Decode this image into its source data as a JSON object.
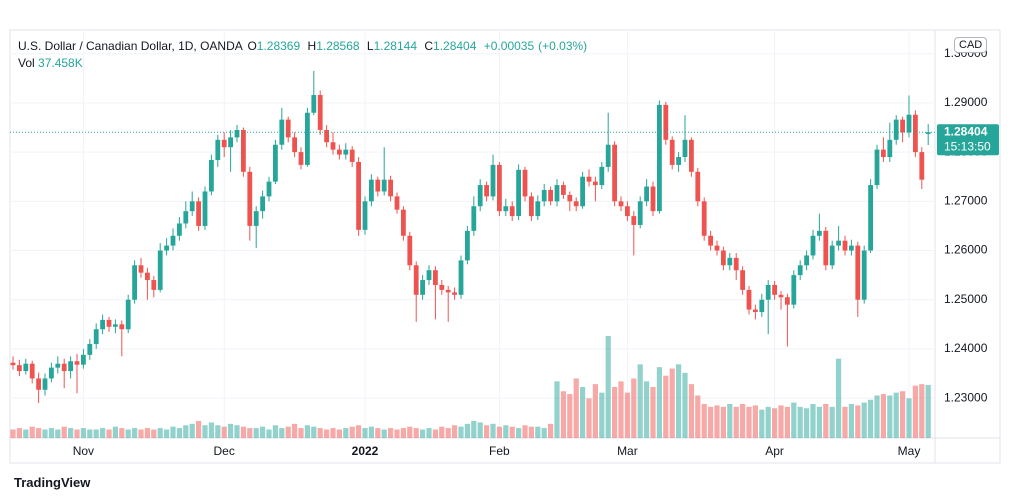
{
  "chart_data": {
    "type": "candlestick",
    "title": "U.S. Dollar / Canadian Dollar, 1D, OANDA",
    "ohlc_labels": [
      "O",
      "H",
      "L",
      "C"
    ],
    "change": "+0.00035",
    "change_pct": "(+0.03%)",
    "volume_name": "Vol",
    "volume_label": "37.458K",
    "currency": "CAD",
    "countdown": "15:13:50",
    "brand": "TradingView",
    "up_color": "#26a69a",
    "down_color": "#ef5350",
    "grid": true,
    "ylim": [
      1.2219,
      1.3038
    ],
    "yticks": [
      {
        "value": 1.23,
        "label": "1.23000"
      },
      {
        "value": 1.24,
        "label": "1.24000"
      },
      {
        "value": 1.25,
        "label": "1.25000"
      },
      {
        "value": 1.26,
        "label": "1.26000"
      },
      {
        "value": 1.27,
        "label": "1.27000"
      },
      {
        "value": 1.28,
        "label": "1.28000"
      },
      {
        "value": 1.29,
        "label": "1.29000"
      },
      {
        "value": 1.3,
        "label": "1.30000"
      }
    ],
    "categories": [
      null,
      null,
      null,
      null,
      null,
      null,
      null,
      null,
      null,
      null,
      null,
      "Nov",
      null,
      null,
      null,
      null,
      null,
      null,
      null,
      null,
      null,
      null,
      null,
      null,
      null,
      null,
      null,
      null,
      null,
      null,
      null,
      null,
      null,
      "Dec",
      null,
      null,
      null,
      null,
      null,
      null,
      null,
      null,
      null,
      null,
      null,
      null,
      null,
      null,
      null,
      null,
      null,
      null,
      null,
      null,
      null,
      "2022",
      null,
      null,
      null,
      null,
      null,
      null,
      null,
      null,
      null,
      null,
      null,
      null,
      null,
      null,
      null,
      null,
      null,
      null,
      null,
      null,
      "Feb",
      null,
      null,
      null,
      null,
      null,
      null,
      null,
      null,
      null,
      null,
      null,
      null,
      null,
      null,
      null,
      null,
      null,
      null,
      null,
      "Mar",
      null,
      null,
      null,
      null,
      null,
      null,
      null,
      null,
      null,
      null,
      null,
      null,
      null,
      null,
      null,
      null,
      null,
      null,
      null,
      null,
      null,
      null,
      "Apr",
      null,
      null,
      null,
      null,
      null,
      null,
      null,
      null,
      null,
      null,
      null,
      null,
      null,
      null,
      null,
      null,
      null,
      null,
      null,
      null,
      "May",
      null,
      null,
      null
    ],
    "ohlc": [
      [
        1.2372,
        1.2385,
        1.2358,
        1.2367
      ],
      [
        1.2367,
        1.2378,
        1.2345,
        1.2355
      ],
      [
        1.2355,
        1.238,
        1.2348,
        1.237
      ],
      [
        1.237,
        1.2376,
        1.233,
        1.234
      ],
      [
        1.234,
        1.2352,
        1.229,
        1.2317
      ],
      [
        1.2317,
        1.235,
        1.2305,
        1.234
      ],
      [
        1.234,
        1.2372,
        1.2332,
        1.2362
      ],
      [
        1.2362,
        1.2385,
        1.235,
        1.237
      ],
      [
        1.237,
        1.238,
        1.232,
        1.2355
      ],
      [
        1.2355,
        1.2385,
        1.234,
        1.2375
      ],
      [
        1.2375,
        1.239,
        1.231,
        1.2368
      ],
      [
        1.2368,
        1.24,
        1.236,
        1.2388
      ],
      [
        1.2388,
        1.242,
        1.2378,
        1.241
      ],
      [
        1.241,
        1.2452,
        1.24,
        1.244
      ],
      [
        1.244,
        1.247,
        1.243,
        1.2459
      ],
      [
        1.2459,
        1.2465,
        1.2435,
        1.2445
      ],
      [
        1.2445,
        1.246,
        1.2432,
        1.245
      ],
      [
        1.245,
        1.2458,
        1.2385,
        1.244
      ],
      [
        1.244,
        1.251,
        1.2432,
        1.25
      ],
      [
        1.25,
        1.258,
        1.2492,
        1.257
      ],
      [
        1.257,
        1.2585,
        1.2545,
        1.2555
      ],
      [
        1.2555,
        1.2565,
        1.25,
        1.254
      ],
      [
        1.254,
        1.2548,
        1.2505,
        1.252
      ],
      [
        1.252,
        1.2615,
        1.2515,
        1.26
      ],
      [
        1.26,
        1.2625,
        1.259,
        1.261
      ],
      [
        1.261,
        1.2645,
        1.26,
        1.263
      ],
      [
        1.263,
        1.2668,
        1.262,
        1.2655
      ],
      [
        1.2655,
        1.27,
        1.2645,
        1.268
      ],
      [
        1.268,
        1.272,
        1.267,
        1.27
      ],
      [
        1.27,
        1.2708,
        1.264,
        1.265
      ],
      [
        1.265,
        1.273,
        1.2642,
        1.272
      ],
      [
        1.272,
        1.2795,
        1.2712,
        1.2784
      ],
      [
        1.2784,
        1.2835,
        1.277,
        1.2825
      ],
      [
        1.2825,
        1.284,
        1.279,
        1.281
      ],
      [
        1.281,
        1.2845,
        1.276,
        1.283
      ],
      [
        1.283,
        1.2855,
        1.282,
        1.2845
      ],
      [
        1.2845,
        1.285,
        1.275,
        1.276
      ],
      [
        1.276,
        1.277,
        1.262,
        1.265
      ],
      [
        1.265,
        1.269,
        1.2605,
        1.268
      ],
      [
        1.268,
        1.2722,
        1.2665,
        1.271
      ],
      [
        1.271,
        1.275,
        1.27,
        1.274
      ],
      [
        1.274,
        1.2825,
        1.2735,
        1.2815
      ],
      [
        1.2815,
        1.289,
        1.2805,
        1.2866
      ],
      [
        1.2866,
        1.2872,
        1.282,
        1.283
      ],
      [
        1.283,
        1.284,
        1.279,
        1.28
      ],
      [
        1.28,
        1.281,
        1.2765,
        1.2774
      ],
      [
        1.2774,
        1.289,
        1.277,
        1.288
      ],
      [
        1.288,
        1.2965,
        1.2875,
        1.2916
      ],
      [
        1.2916,
        1.2925,
        1.2835,
        1.2845
      ],
      [
        1.2845,
        1.2855,
        1.281,
        1.282
      ],
      [
        1.282,
        1.284,
        1.2795,
        1.2805
      ],
      [
        1.2805,
        1.2815,
        1.2785,
        1.2795
      ],
      [
        1.2795,
        1.2818,
        1.2785,
        1.2805
      ],
      [
        1.2805,
        1.2812,
        1.277,
        1.278
      ],
      [
        1.278,
        1.279,
        1.263,
        1.2642
      ],
      [
        1.2642,
        1.271,
        1.2632,
        1.27
      ],
      [
        1.27,
        1.2755,
        1.269,
        1.2744
      ],
      [
        1.2744,
        1.275,
        1.271,
        1.272
      ],
      [
        1.272,
        1.281,
        1.2712,
        1.2744
      ],
      [
        1.2744,
        1.2752,
        1.27,
        1.271
      ],
      [
        1.271,
        1.2718,
        1.2675,
        1.2683
      ],
      [
        1.2683,
        1.269,
        1.262,
        1.263
      ],
      [
        1.263,
        1.2638,
        1.256,
        1.257
      ],
      [
        1.257,
        1.2578,
        1.2455,
        1.251
      ],
      [
        1.251,
        1.255,
        1.25,
        1.254
      ],
      [
        1.254,
        1.257,
        1.253,
        1.256
      ],
      [
        1.256,
        1.2568,
        1.246,
        1.253
      ],
      [
        1.253,
        1.254,
        1.251,
        1.252
      ],
      [
        1.252,
        1.2528,
        1.2455,
        1.2515
      ],
      [
        1.2515,
        1.2525,
        1.25,
        1.251
      ],
      [
        1.251,
        1.259,
        1.2502,
        1.258
      ],
      [
        1.258,
        1.265,
        1.2572,
        1.264
      ],
      [
        1.264,
        1.271,
        1.263,
        1.269
      ],
      [
        1.269,
        1.2745,
        1.268,
        1.2733
      ],
      [
        1.2733,
        1.274,
        1.27,
        1.271
      ],
      [
        1.271,
        1.2795,
        1.2702,
        1.2774
      ],
      [
        1.2774,
        1.278,
        1.267,
        1.268
      ],
      [
        1.268,
        1.2705,
        1.267,
        1.269
      ],
      [
        1.269,
        1.27,
        1.266,
        1.267
      ],
      [
        1.267,
        1.2775,
        1.2662,
        1.2764
      ],
      [
        1.2764,
        1.277,
        1.27,
        1.271
      ],
      [
        1.271,
        1.2718,
        1.266,
        1.267
      ],
      [
        1.267,
        1.2712,
        1.2662,
        1.27
      ],
      [
        1.27,
        1.2735,
        1.269,
        1.2723
      ],
      [
        1.2723,
        1.273,
        1.2692,
        1.27
      ],
      [
        1.27,
        1.2745,
        1.269,
        1.2733
      ],
      [
        1.2733,
        1.274,
        1.2705,
        1.2713
      ],
      [
        1.2713,
        1.272,
        1.268,
        1.27
      ],
      [
        1.27,
        1.2708,
        1.268,
        1.269
      ],
      [
        1.269,
        1.276,
        1.2685,
        1.275
      ],
      [
        1.275,
        1.2765,
        1.273,
        1.274
      ],
      [
        1.274,
        1.275,
        1.27,
        1.2733
      ],
      [
        1.2733,
        1.278,
        1.2725,
        1.277
      ],
      [
        1.277,
        1.288,
        1.276,
        1.2815
      ],
      [
        1.2815,
        1.2822,
        1.269,
        1.27
      ],
      [
        1.27,
        1.271,
        1.268,
        1.269
      ],
      [
        1.269,
        1.27,
        1.266,
        1.267
      ],
      [
        1.267,
        1.268,
        1.259,
        1.2652
      ],
      [
        1.2652,
        1.271,
        1.2645,
        1.27
      ],
      [
        1.27,
        1.2745,
        1.269,
        1.273
      ],
      [
        1.273,
        1.274,
        1.267,
        1.268
      ],
      [
        1.268,
        1.2905,
        1.2675,
        1.2896
      ],
      [
        1.2896,
        1.2902,
        1.2815,
        1.2825
      ],
      [
        1.2825,
        1.2832,
        1.2765,
        1.2774
      ],
      [
        1.2774,
        1.28,
        1.276,
        1.279
      ],
      [
        1.279,
        1.2875,
        1.278,
        1.2825
      ],
      [
        1.2825,
        1.283,
        1.275,
        1.276
      ],
      [
        1.276,
        1.2768,
        1.269,
        1.27
      ],
      [
        1.27,
        1.2708,
        1.262,
        1.263
      ],
      [
        1.263,
        1.264,
        1.26,
        1.261
      ],
      [
        1.261,
        1.262,
        1.259,
        1.26
      ],
      [
        1.26,
        1.2608,
        1.256,
        1.257
      ],
      [
        1.257,
        1.2595,
        1.256,
        1.2585
      ],
      [
        1.2585,
        1.2595,
        1.254,
        1.256
      ],
      [
        1.256,
        1.2568,
        1.251,
        1.252
      ],
      [
        1.252,
        1.2528,
        1.247,
        1.248
      ],
      [
        1.248,
        1.249,
        1.246,
        1.2475
      ],
      [
        1.2475,
        1.2512,
        1.2465,
        1.25
      ],
      [
        1.25,
        1.254,
        1.243,
        1.253
      ],
      [
        1.253,
        1.2538,
        1.25,
        1.251
      ],
      [
        1.251,
        1.2518,
        1.248,
        1.2505
      ],
      [
        1.2505,
        1.2512,
        1.2405,
        1.249
      ],
      [
        1.249,
        1.256,
        1.2482,
        1.255
      ],
      [
        1.255,
        1.258,
        1.254,
        1.257
      ],
      [
        1.257,
        1.26,
        1.256,
        1.259
      ],
      [
        1.259,
        1.2642,
        1.2582,
        1.263
      ],
      [
        1.263,
        1.2675,
        1.262,
        1.264
      ],
      [
        1.264,
        1.2648,
        1.256,
        1.257
      ],
      [
        1.257,
        1.262,
        1.2562,
        1.261
      ],
      [
        1.261,
        1.265,
        1.26,
        1.262
      ],
      [
        1.262,
        1.263,
        1.259,
        1.26
      ],
      [
        1.26,
        1.2622,
        1.259,
        1.261
      ],
      [
        1.261,
        1.2618,
        1.2465,
        1.25
      ],
      [
        1.25,
        1.261,
        1.2492,
        1.26
      ],
      [
        1.26,
        1.2745,
        1.2595,
        1.2733
      ],
      [
        1.2733,
        1.2815,
        1.2725,
        1.2805
      ],
      [
        1.2805,
        1.283,
        1.278,
        1.279
      ],
      [
        1.279,
        1.286,
        1.278,
        1.2825
      ],
      [
        1.2825,
        1.2875,
        1.2815,
        1.2866
      ],
      [
        1.2866,
        1.2872,
        1.282,
        1.284
      ],
      [
        1.284,
        1.2915,
        1.283,
        1.2876
      ],
      [
        1.2876,
        1.2885,
        1.279,
        1.28
      ],
      [
        1.28,
        1.281,
        1.2725,
        1.2744
      ],
      [
        1.28369,
        1.28568,
        1.28144,
        1.28404
      ]
    ],
    "volume": [
      6,
      7,
      6,
      8,
      7,
      6,
      7,
      6,
      8,
      7,
      6,
      7,
      6,
      6,
      7,
      6,
      8,
      7,
      6,
      7,
      6,
      7,
      6,
      7,
      6,
      8,
      7,
      9,
      10,
      12,
      9,
      11,
      9,
      8,
      10,
      9,
      8,
      7,
      7,
      8,
      6,
      9,
      7,
      8,
      10,
      7,
      9,
      8,
      7,
      6,
      7,
      6,
      7,
      8,
      9,
      7,
      8,
      7,
      6,
      7,
      6,
      7,
      8,
      7,
      6,
      7,
      6,
      8,
      7,
      9,
      8,
      10,
      12,
      11,
      9,
      10,
      8,
      9,
      8,
      7,
      9,
      8,
      8,
      7,
      10,
      40,
      33,
      31,
      42,
      36,
      28,
      38,
      32,
      72,
      36,
      40,
      32,
      42,
      52,
      40,
      36,
      50,
      44,
      49,
      52,
      46,
      38,
      30,
      24,
      22,
      23,
      22,
      24,
      22,
      24,
      22,
      23,
      20,
      22,
      21,
      23,
      22,
      25,
      22,
      21,
      24,
      22,
      24,
      22,
      56,
      22,
      24,
      23,
      25,
      27,
      30,
      31,
      30,
      32,
      33,
      28,
      37,
      38,
      37.458
    ]
  }
}
